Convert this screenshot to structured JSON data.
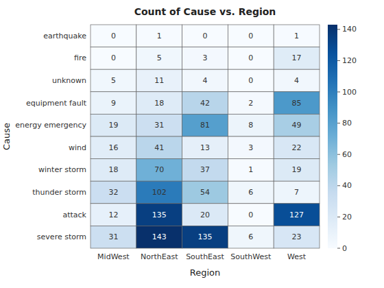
{
  "chart_data": {
    "type": "heatmap",
    "title": "Count of Cause vs. Region",
    "x_label": "Region",
    "y_label": "Cause",
    "categories": [
      "MidWest",
      "NorthEast",
      "SouthEast",
      "SouthWest",
      "West"
    ],
    "rows": [
      "earthquake",
      "fire",
      "unknown",
      "equipment fault",
      "energy emergency",
      "wind",
      "winter storm",
      "thunder storm",
      "attack",
      "severe storm"
    ],
    "values": [
      [
        0,
        1,
        0,
        0,
        1
      ],
      [
        0,
        5,
        3,
        0,
        17
      ],
      [
        5,
        11,
        4,
        0,
        4
      ],
      [
        9,
        18,
        42,
        2,
        85
      ],
      [
        19,
        31,
        81,
        8,
        49
      ],
      [
        16,
        41,
        13,
        3,
        22
      ],
      [
        18,
        70,
        37,
        1,
        19
      ],
      [
        32,
        102,
        54,
        6,
        7
      ],
      [
        12,
        135,
        20,
        0,
        127
      ],
      [
        31,
        143,
        135,
        6,
        23
      ]
    ],
    "color": "Blues",
    "color_range": [
      0,
      143
    ],
    "color_ticks": [
      0,
      20,
      40,
      60,
      80,
      100,
      120,
      140
    ],
    "grid": true,
    "data_labels": true
  }
}
